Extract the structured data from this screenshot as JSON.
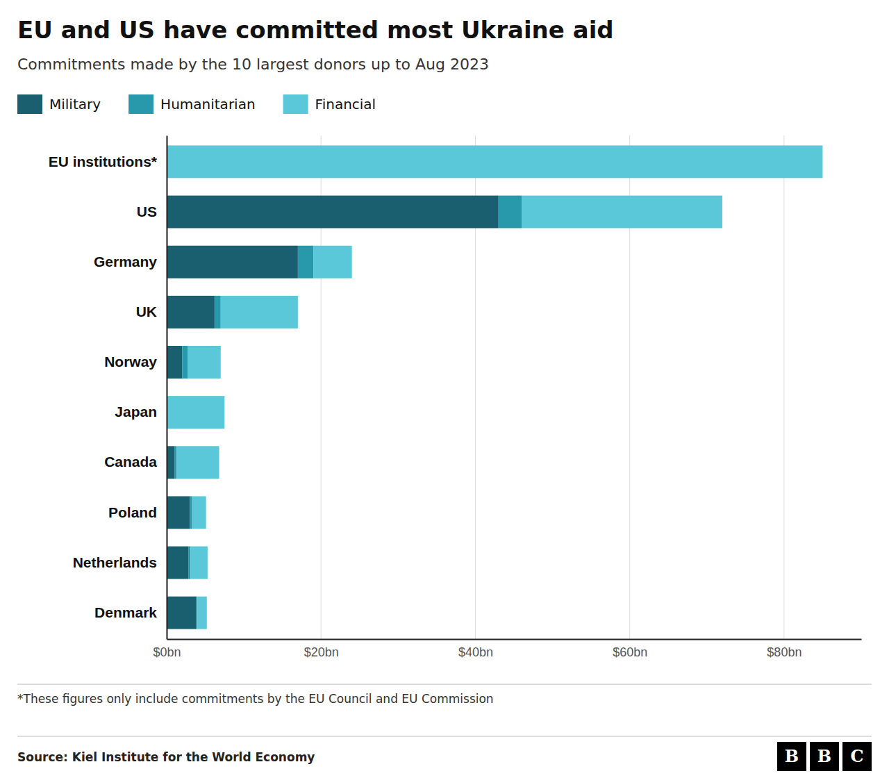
{
  "chart_data": {
    "type": "bar",
    "orientation": "horizontal",
    "stacked": true,
    "title": "EU and US have committed most Ukraine aid",
    "subtitle": "Commitments made by the 10 largest donors up to Aug 2023",
    "annotations": [
      "*These figures only include commitments by the EU Council and EU Commission",
      "Source: Kiel Institute for the World Economy",
      "BBC"
    ],
    "categories": [
      "EU institutions*",
      "US",
      "Germany",
      "UK",
      "Norway",
      "Japan",
      "Canada",
      "Poland",
      "Netherlands",
      "Denmark"
    ],
    "series": [
      {
        "name": "Military",
        "color": "#1a5f6f",
        "values": [
          0.0,
          43.0,
          17.0,
          6.2,
          2.0,
          0.0,
          1.0,
          3.0,
          2.8,
          3.8
        ]
      },
      {
        "name": "Humanitarian",
        "color": "#2899aa",
        "values": [
          0.0,
          3.0,
          2.0,
          0.8,
          0.7,
          0.0,
          0.3,
          0.3,
          0.3,
          0.2
        ]
      },
      {
        "name": "Financial",
        "color": "#5ac8d8",
        "values": [
          85.0,
          26.0,
          5.0,
          10.0,
          4.3,
          7.5,
          5.5,
          1.8,
          2.2,
          1.2
        ]
      }
    ],
    "xlim": [
      0,
      90
    ],
    "xticks": [
      {
        "value": 0,
        "label": "$0bn"
      },
      {
        "value": 20,
        "label": "$20bn"
      },
      {
        "value": 40,
        "label": "$40bn"
      },
      {
        "value": 60,
        "label": "$60bn"
      },
      {
        "value": 80,
        "label": "$80bn"
      }
    ],
    "grid": true
  }
}
